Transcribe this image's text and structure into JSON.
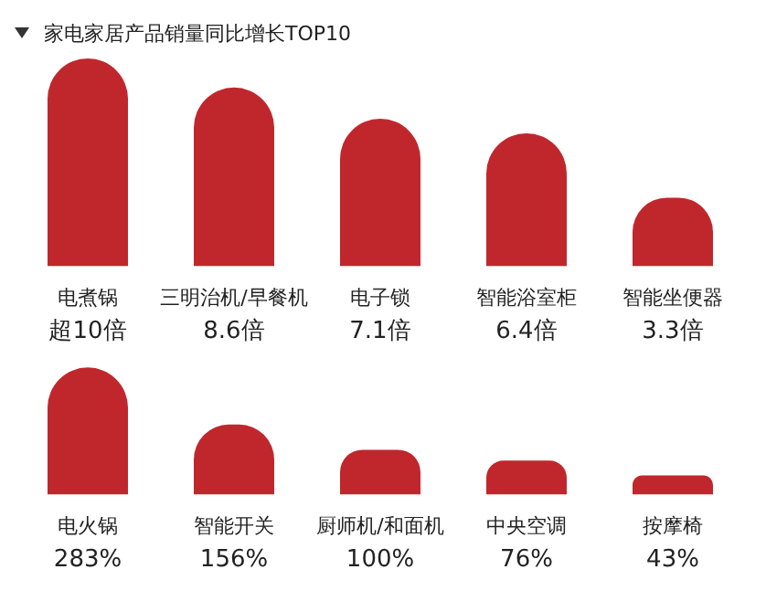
{
  "chart_data": [
    {
      "type": "bar",
      "title": "家电家居产品销量同比增长TOP10",
      "categories": [
        "电煮锅",
        "三明治机/早餐机",
        "电子锁",
        "智能浴室柜",
        "智能坐便器"
      ],
      "values": [
        10,
        8.6,
        7.1,
        6.4,
        3.3
      ],
      "value_labels": [
        "超10倍",
        "8.6倍",
        "7.1倍",
        "6.4倍",
        "3.3倍"
      ],
      "color": "#c0272d",
      "tick_labels": "x"
    },
    {
      "type": "bar",
      "categories": [
        "电火锅",
        "智能开关",
        "厨师机/和面机",
        "中央空调",
        "按摩椅"
      ],
      "values": [
        283,
        156,
        100,
        76,
        43
      ],
      "value_labels": [
        "283%",
        "156%",
        "100%",
        "76%",
        "43%"
      ],
      "color": "#c0272d",
      "tick_labels": "x"
    }
  ]
}
